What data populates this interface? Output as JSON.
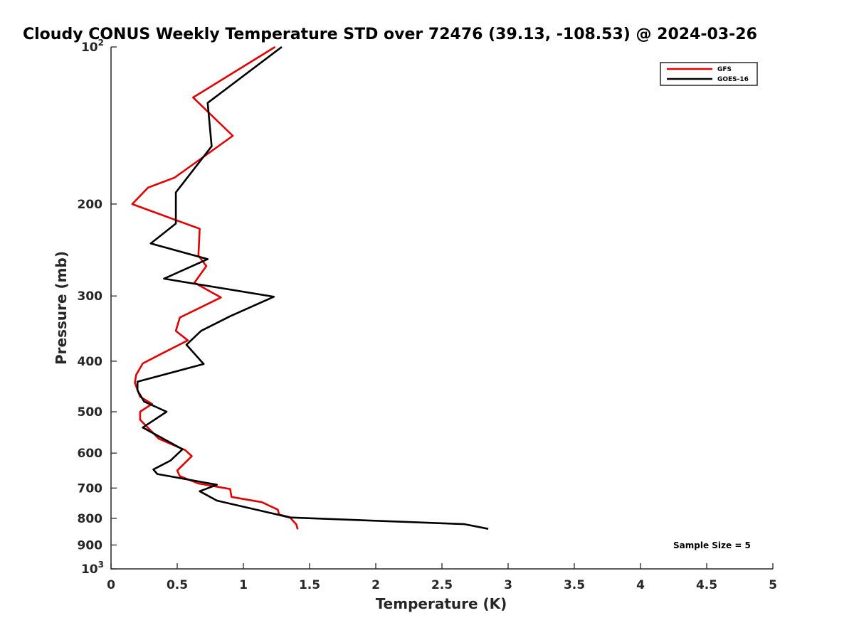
{
  "chart_data": {
    "type": "line",
    "title": "Cloudy CONUS Weekly Temperature STD over 72476 (39.13, -108.53) @ 2024-03-26",
    "xlabel": "Temperature (K)",
    "ylabel": "Pressure (mb)",
    "xlim": [
      0,
      5
    ],
    "ylim": [
      100,
      1000
    ],
    "y_scale": "log",
    "y_reversed": true,
    "grid": false,
    "legend_position": "top-right",
    "x_ticks": [
      {
        "value": 0,
        "label": "0"
      },
      {
        "value": 0.5,
        "label": "0.5"
      },
      {
        "value": 1,
        "label": "1"
      },
      {
        "value": 1.5,
        "label": "1.5"
      },
      {
        "value": 2,
        "label": "2"
      },
      {
        "value": 2.5,
        "label": "2.5"
      },
      {
        "value": 3,
        "label": "3"
      },
      {
        "value": 3.5,
        "label": "3.5"
      },
      {
        "value": 4,
        "label": "4"
      },
      {
        "value": 4.5,
        "label": "4.5"
      },
      {
        "value": 5,
        "label": "5"
      }
    ],
    "y_ticks": [
      {
        "value": 100,
        "base": "10",
        "exp": "2"
      },
      {
        "value": 200,
        "base": "200",
        "exp": ""
      },
      {
        "value": 300,
        "base": "300",
        "exp": ""
      },
      {
        "value": 400,
        "base": "400",
        "exp": ""
      },
      {
        "value": 500,
        "base": "500",
        "exp": ""
      },
      {
        "value": 600,
        "base": "600",
        "exp": ""
      },
      {
        "value": 700,
        "base": "700",
        "exp": ""
      },
      {
        "value": 800,
        "base": "800",
        "exp": ""
      },
      {
        "value": 900,
        "base": "900",
        "exp": ""
      },
      {
        "value": 1000,
        "base": "10",
        "exp": "3"
      }
    ],
    "series": [
      {
        "name": "GFS",
        "color": "#e00000",
        "points": [
          [
            1.24,
            100
          ],
          [
            0.62,
            125
          ],
          [
            0.92,
            148
          ],
          [
            0.48,
            178
          ],
          [
            0.28,
            186
          ],
          [
            0.16,
            200
          ],
          [
            0.67,
            223
          ],
          [
            0.66,
            251
          ],
          [
            0.72,
            263
          ],
          [
            0.63,
            283
          ],
          [
            0.83,
            302
          ],
          [
            0.52,
            330
          ],
          [
            0.49,
            350
          ],
          [
            0.58,
            365
          ],
          [
            0.4,
            385
          ],
          [
            0.24,
            404
          ],
          [
            0.19,
            425
          ],
          [
            0.18,
            440
          ],
          [
            0.22,
            468
          ],
          [
            0.31,
            483
          ],
          [
            0.22,
            500
          ],
          [
            0.22,
            518
          ],
          [
            0.36,
            563
          ],
          [
            0.56,
            592
          ],
          [
            0.61,
            608
          ],
          [
            0.5,
            648
          ],
          [
            0.52,
            664
          ],
          [
            0.66,
            686
          ],
          [
            0.9,
            703
          ],
          [
            0.91,
            728
          ],
          [
            1.14,
            745
          ],
          [
            1.26,
            770
          ],
          [
            1.27,
            787
          ],
          [
            1.35,
            796
          ],
          [
            1.4,
            822
          ],
          [
            1.41,
            840
          ]
        ]
      },
      {
        "name": "GOES-16",
        "color": "#000000",
        "points": [
          [
            1.29,
            100
          ],
          [
            0.73,
            128
          ],
          [
            0.76,
            155
          ],
          [
            0.49,
            190
          ],
          [
            0.49,
            218
          ],
          [
            0.3,
            238
          ],
          [
            0.73,
            255
          ],
          [
            0.4,
            278
          ],
          [
            1.23,
            301
          ],
          [
            0.9,
            328
          ],
          [
            0.68,
            350
          ],
          [
            0.57,
            372
          ],
          [
            0.7,
            405
          ],
          [
            0.2,
            438
          ],
          [
            0.2,
            455
          ],
          [
            0.25,
            478
          ],
          [
            0.42,
            500
          ],
          [
            0.24,
            536
          ],
          [
            0.54,
            590
          ],
          [
            0.45,
            620
          ],
          [
            0.32,
            645
          ],
          [
            0.35,
            658
          ],
          [
            0.8,
            690
          ],
          [
            0.67,
            710
          ],
          [
            0.8,
            740
          ],
          [
            1.22,
            783
          ],
          [
            1.35,
            797
          ],
          [
            2.67,
            821
          ],
          [
            2.85,
            838
          ]
        ]
      }
    ],
    "annotations": [
      "Sample Size = 5"
    ]
  }
}
